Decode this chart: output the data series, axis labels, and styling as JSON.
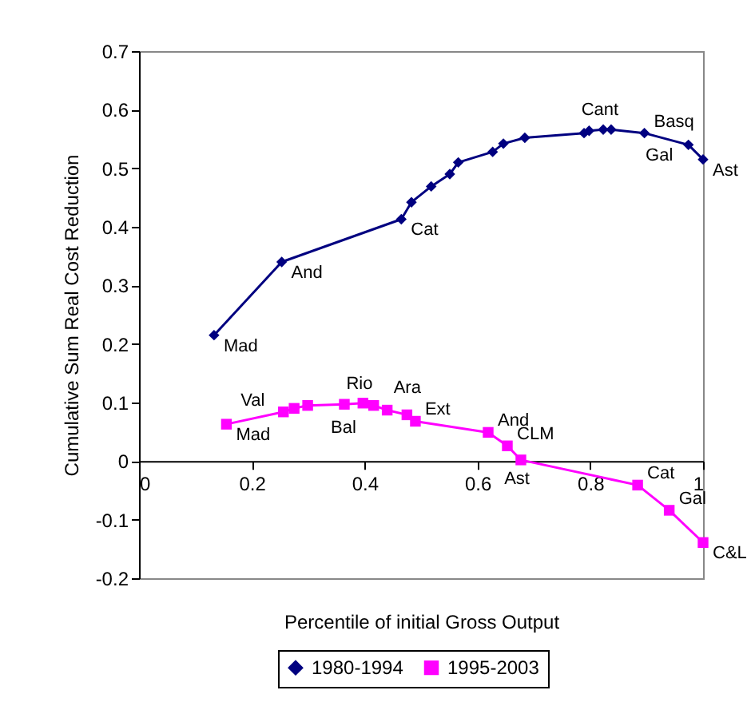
{
  "chart_data": {
    "type": "line",
    "xlabel": "Percentile of initial Gross Output",
    "ylabel": "Cumulative Sum Real Cost Reduction",
    "xlim": [
      0,
      1
    ],
    "xticks": [
      0,
      0.2,
      0.4,
      0.6,
      0.8,
      1
    ],
    "ylim": [
      -0.2,
      0.7
    ],
    "yticks": [
      -0.2,
      -0.1,
      0,
      0.1,
      0.2,
      0.3,
      0.4,
      0.5,
      0.6,
      0.7
    ],
    "legend": "bottom",
    "grid": false,
    "series": [
      {
        "name": "1980-1994",
        "color": "#000080",
        "marker": "diamond",
        "x": [
          0.133,
          0.253,
          0.465,
          0.483,
          0.518,
          0.551,
          0.566,
          0.627,
          0.646,
          0.684,
          0.789,
          0.798,
          0.823,
          0.837,
          0.896,
          0.974,
          1.0
        ],
        "values": [
          0.215,
          0.34,
          0.413,
          0.442,
          0.469,
          0.49,
          0.51,
          0.528,
          0.542,
          0.552,
          0.56,
          0.564,
          0.566,
          0.566,
          0.56,
          0.54,
          0.515
        ]
      },
      {
        "name": "1995-2003",
        "color": "#ff00ff",
        "marker": "square",
        "x": [
          0.155,
          0.256,
          0.275,
          0.299,
          0.364,
          0.397,
          0.416,
          0.44,
          0.475,
          0.49,
          0.619,
          0.653,
          0.677,
          0.884,
          0.94,
          1.0
        ],
        "values": [
          0.063,
          0.084,
          0.09,
          0.095,
          0.097,
          0.099,
          0.095,
          0.087,
          0.079,
          0.068,
          0.049,
          0.026,
          0.002,
          -0.041,
          -0.084,
          -0.139
        ]
      }
    ],
    "annotations": [
      {
        "text": "Mad",
        "x": 0.133,
        "y": 0.215
      },
      {
        "text": "And",
        "x": 0.253,
        "y": 0.34
      },
      {
        "text": "Cat",
        "x": 0.465,
        "y": 0.413
      },
      {
        "text": "Cant",
        "x": 0.823,
        "y": 0.566
      },
      {
        "text": "Basq",
        "x": 0.896,
        "y": 0.56
      },
      {
        "text": "Gal",
        "x": 0.974,
        "y": 0.54
      },
      {
        "text": "Ast",
        "x": 1.0,
        "y": 0.515
      },
      {
        "text": "Mad",
        "x": 0.155,
        "y": 0.063
      },
      {
        "text": "Val",
        "x": 0.256,
        "y": 0.084
      },
      {
        "text": "Rio",
        "x": 0.397,
        "y": 0.099
      },
      {
        "text": "Bal",
        "x": 0.416,
        "y": 0.095
      },
      {
        "text": "Ara",
        "x": 0.44,
        "y": 0.087
      },
      {
        "text": "Ext",
        "x": 0.49,
        "y": 0.068
      },
      {
        "text": "And",
        "x": 0.619,
        "y": 0.049
      },
      {
        "text": "CLM",
        "x": 0.653,
        "y": 0.026
      },
      {
        "text": "Ast",
        "x": 0.677,
        "y": 0.002
      },
      {
        "text": "Cat",
        "x": 0.884,
        "y": -0.041
      },
      {
        "text": "Gal",
        "x": 0.94,
        "y": -0.084
      },
      {
        "text": "C&L",
        "x": 1.0,
        "y": -0.139
      }
    ]
  }
}
